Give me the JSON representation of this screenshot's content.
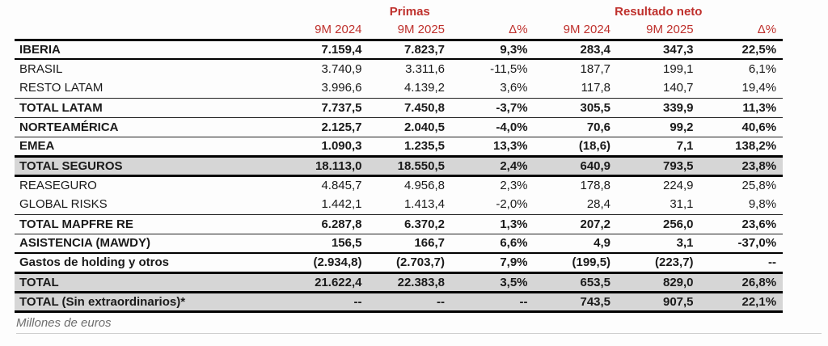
{
  "colors": {
    "accent_red": "#bf312d",
    "highlight_gray": "#d6d6d6"
  },
  "table": {
    "group_headers": {
      "primas": "Primas",
      "resultado_neto": "Resultado neto"
    },
    "column_headers": [
      "9M 2024",
      "9M 2025",
      "Δ%",
      "9M 2024",
      "9M 2025",
      "Δ%"
    ],
    "rows": [
      {
        "label": "IBERIA",
        "values": [
          "7.159,4",
          "7.823,7",
          "9,3%",
          "283,4",
          "347,3",
          "22,5%"
        ],
        "bold": true,
        "highlight": false,
        "border": "med"
      },
      {
        "label": "BRASIL",
        "values": [
          "3.740,9",
          "3.311,6",
          "-11,5%",
          "187,7",
          "199,1",
          "6,1%"
        ],
        "bold": false,
        "highlight": false,
        "border": "none"
      },
      {
        "label": "RESTO LATAM",
        "values": [
          "3.996,6",
          "4.139,2",
          "3,6%",
          "117,8",
          "140,7",
          "19,4%"
        ],
        "bold": false,
        "highlight": false,
        "border": "thin"
      },
      {
        "label": "TOTAL LATAM",
        "values": [
          "7.737,5",
          "7.450,8",
          "-3,7%",
          "305,5",
          "339,9",
          "11,3%"
        ],
        "bold": true,
        "highlight": false,
        "border": "thin"
      },
      {
        "label": "NORTEAMÉRICA",
        "values": [
          "2.125,7",
          "2.040,5",
          "-4,0%",
          "70,6",
          "99,2",
          "40,6%"
        ],
        "bold": true,
        "highlight": false,
        "border": "thin"
      },
      {
        "label": "EMEA",
        "values": [
          "1.090,3",
          "1.235,5",
          "13,3%",
          "(18,6)",
          "7,1",
          "138,2%"
        ],
        "bold": true,
        "highlight": false,
        "border": "thick"
      },
      {
        "label": "TOTAL SEGUROS",
        "values": [
          "18.113,0",
          "18.550,5",
          "2,4%",
          "640,9",
          "793,5",
          "23,8%"
        ],
        "bold": true,
        "highlight": true,
        "border": "thick"
      },
      {
        "label": "REASEGURO",
        "values": [
          "4.845,7",
          "4.956,8",
          "2,3%",
          "178,8",
          "224,9",
          "25,8%"
        ],
        "bold": false,
        "highlight": false,
        "border": "none"
      },
      {
        "label": "GLOBAL RISKS",
        "values": [
          "1.442,1",
          "1.413,4",
          "-2,0%",
          "28,4",
          "31,1",
          "9,8%"
        ],
        "bold": false,
        "highlight": false,
        "border": "thin"
      },
      {
        "label": "TOTAL MAPFRE RE",
        "values": [
          "6.287,8",
          "6.370,2",
          "1,3%",
          "207,2",
          "256,0",
          "23,6%"
        ],
        "bold": true,
        "highlight": false,
        "border": "thin"
      },
      {
        "label": "ASISTENCIA (MAWDY)",
        "values": [
          "156,5",
          "166,7",
          "6,6%",
          "4,9",
          "3,1",
          "-37,0%"
        ],
        "bold": true,
        "highlight": false,
        "border": "med"
      },
      {
        "label": "Gastos de holding y otros",
        "values": [
          "(2.934,8)",
          "(2.703,7)",
          "7,9%",
          "(199,5)",
          "(223,7)",
          "--"
        ],
        "bold": true,
        "highlight": false,
        "border": "thick"
      },
      {
        "label": "TOTAL",
        "values": [
          "21.622,4",
          "22.383,8",
          "3,5%",
          "653,5",
          "829,0",
          "26,8%"
        ],
        "bold": true,
        "highlight": true,
        "border": "thick"
      },
      {
        "label": "TOTAL (Sin extraordinarios)*",
        "values": [
          "--",
          "--",
          "--",
          "743,5",
          "907,5",
          "22,1%"
        ],
        "bold": true,
        "highlight": true,
        "border": "thick"
      }
    ],
    "footnote": "Millones de euros"
  }
}
